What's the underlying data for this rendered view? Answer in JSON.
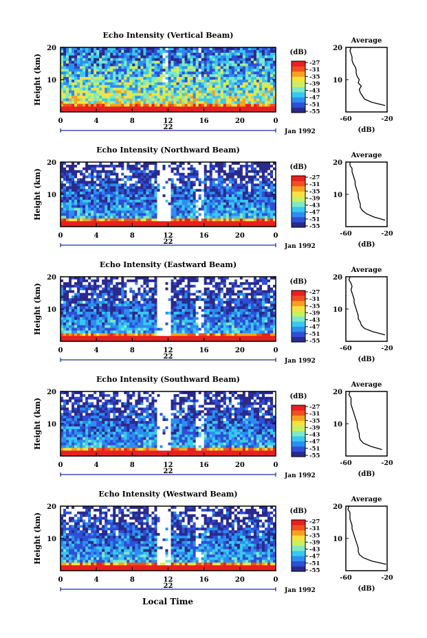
{
  "chart_data": {
    "type": "heatmap",
    "shared": {
      "x_ticks": [
        "0",
        "4",
        "8",
        "12",
        "16",
        "20",
        "0"
      ],
      "x_range": [
        0,
        24
      ],
      "y_range": [
        0,
        20
      ],
      "y_ticks": [
        "10",
        "20"
      ],
      "ylabel": "Height (km)",
      "date_label": "22",
      "month_label": "Jan 1992",
      "colorbar_unit": "(dB)",
      "colorbar_ticks": [
        "-27",
        "-31",
        "-35",
        "-39",
        "-43",
        "-47",
        "-51",
        "-55"
      ],
      "colorbar_colors": [
        "#2a2a8c",
        "#2f4fd6",
        "#2c8ef0",
        "#39c8f0",
        "#7ee8c8",
        "#c8f060",
        "#f8e040",
        "#f8a020",
        "#f05020",
        "#e82020"
      ],
      "avg_title": "Average",
      "avg_xticks": [
        "-60",
        "-20"
      ],
      "avg_xrange": [
        -60,
        -20
      ],
      "avg_xlabel": "(dB)",
      "xlabel": "Local Time"
    },
    "panels": [
      {
        "title": "Echo Intensity (Vertical Beam)",
        "profile_height_km": [
          2,
          3,
          4,
          5,
          6,
          7,
          8,
          9,
          10,
          11,
          12,
          13,
          14,
          15,
          16,
          17,
          18,
          19,
          20
        ],
        "profile_db": [
          -22,
          -35,
          -42,
          -44,
          -46,
          -47,
          -45,
          -48,
          -47,
          -49,
          -50,
          -50,
          -51,
          -53,
          -54,
          -54,
          -55,
          -56,
          -55
        ]
      },
      {
        "title": "Echo Intensity (Northward Beam)",
        "profile_height_km": [
          2,
          3,
          4,
          5,
          6,
          7,
          8,
          9,
          10,
          11,
          12,
          13,
          14,
          15,
          16,
          17,
          18,
          19,
          20
        ],
        "profile_db": [
          -22,
          -33,
          -40,
          -44,
          -46,
          -46,
          -47,
          -48,
          -48,
          -49,
          -50,
          -51,
          -51,
          -52,
          -53,
          -54,
          -54,
          -56,
          -56
        ]
      },
      {
        "title": "Echo Intensity (Eastward Beam)",
        "profile_height_km": [
          2,
          3,
          4,
          5,
          6,
          7,
          8,
          9,
          10,
          11,
          12,
          13,
          14,
          15,
          16,
          17,
          18,
          19,
          20
        ],
        "profile_db": [
          -22,
          -34,
          -42,
          -45,
          -46,
          -48,
          -48,
          -49,
          -50,
          -51,
          -52,
          -52,
          -53,
          -54,
          -55,
          -54,
          -55,
          -57,
          -56
        ]
      },
      {
        "title": "Echo Intensity (Southward Beam)",
        "profile_height_km": [
          2,
          3,
          4,
          5,
          6,
          7,
          8,
          9,
          10,
          11,
          12,
          13,
          14,
          15,
          16,
          17,
          18,
          19,
          20
        ],
        "profile_db": [
          -25,
          -36,
          -43,
          -46,
          -47,
          -47,
          -48,
          -49,
          -49,
          -50,
          -51,
          -52,
          -53,
          -54,
          -55,
          -55,
          -55,
          -57,
          -56
        ]
      },
      {
        "title": "Echo Intensity (Westward Beam)",
        "profile_height_km": [
          2,
          3,
          4,
          5,
          6,
          7,
          8,
          9,
          10,
          11,
          12,
          13,
          14,
          15,
          16,
          17,
          18,
          19,
          20
        ],
        "profile_db": [
          -21,
          -35,
          -43,
          -47,
          -48,
          -48,
          -49,
          -50,
          -51,
          -52,
          -53,
          -54,
          -54,
          -55,
          -56,
          -56,
          -56,
          -58,
          -57
        ]
      }
    ]
  }
}
